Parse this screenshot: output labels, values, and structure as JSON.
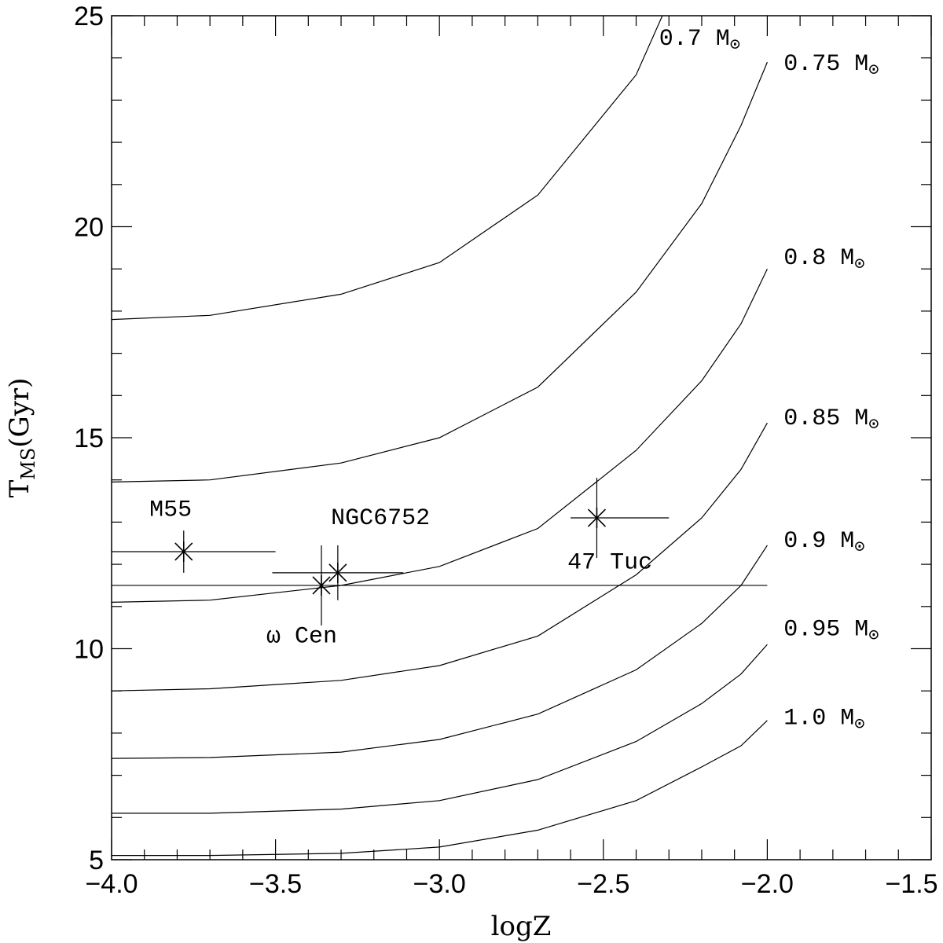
{
  "chart_data": {
    "type": "line",
    "xlabel": "logZ",
    "ylabel": {
      "main": "T",
      "sub": "MS",
      "unit": "(Gyr)"
    },
    "xlim": [
      -4.0,
      -1.5
    ],
    "ylim": [
      5,
      25
    ],
    "x_ticks": [
      {
        "value": -4.0,
        "label": "−4.0"
      },
      {
        "value": -3.5,
        "label": "−3.5"
      },
      {
        "value": -3.0,
        "label": "−3.0"
      },
      {
        "value": -2.5,
        "label": "−2.5"
      },
      {
        "value": -2.0,
        "label": "−2.0"
      },
      {
        "value": -1.5,
        "label": "−1.5"
      }
    ],
    "x_minor_step": 0.1,
    "y_ticks": [
      {
        "value": 5,
        "label": "5"
      },
      {
        "value": 10,
        "label": "10"
      },
      {
        "value": 15,
        "label": "15"
      },
      {
        "value": 20,
        "label": "20"
      },
      {
        "value": 25,
        "label": "25"
      }
    ],
    "y_minor_step": 1,
    "mass_symbol": "M",
    "sun_symbol": "⊙",
    "series": [
      {
        "name": "0.7",
        "x": [
          -4.0,
          -3.7,
          -3.3,
          -3.0,
          -2.7,
          -2.4,
          -2.32
        ],
        "y": [
          17.8,
          17.9,
          18.4,
          19.15,
          20.75,
          23.6,
          25.0
        ]
      },
      {
        "name": "0.75",
        "x": [
          -4.0,
          -3.7,
          -3.3,
          -3.0,
          -2.7,
          -2.4,
          -2.2,
          -2.08,
          -2.0
        ],
        "y": [
          13.95,
          14.0,
          14.4,
          15.0,
          16.2,
          18.45,
          20.55,
          22.4,
          23.9
        ]
      },
      {
        "name": "0.8",
        "x": [
          -4.0,
          -3.7,
          -3.3,
          -3.0,
          -2.7,
          -2.4,
          -2.2,
          -2.08,
          -2.0
        ],
        "y": [
          11.1,
          11.15,
          11.5,
          11.95,
          12.85,
          14.7,
          16.35,
          17.7,
          19.0
        ]
      },
      {
        "name": "0.85",
        "x": [
          -4.0,
          -3.7,
          -3.3,
          -3.0,
          -2.7,
          -2.4,
          -2.2,
          -2.08,
          -2.0
        ],
        "y": [
          9.0,
          9.05,
          9.25,
          9.6,
          10.3,
          11.75,
          13.1,
          14.25,
          15.35
        ]
      },
      {
        "name": "0.9",
        "x": [
          -4.0,
          -3.7,
          -3.3,
          -3.0,
          -2.7,
          -2.4,
          -2.2,
          -2.08,
          -2.0
        ],
        "y": [
          7.4,
          7.42,
          7.55,
          7.85,
          8.45,
          9.5,
          10.6,
          11.5,
          12.45
        ]
      },
      {
        "name": "0.95",
        "x": [
          -4.0,
          -3.7,
          -3.3,
          -3.0,
          -2.7,
          -2.4,
          -2.2,
          -2.08,
          -2.0
        ],
        "y": [
          6.1,
          6.1,
          6.2,
          6.4,
          6.9,
          7.8,
          8.7,
          9.4,
          10.1
        ]
      },
      {
        "name": "1.0",
        "x": [
          -4.0,
          -3.7,
          -3.3,
          -3.0,
          -2.7,
          -2.4,
          -2.2,
          -2.08,
          -2.0
        ],
        "y": [
          5.1,
          5.1,
          5.15,
          5.3,
          5.7,
          6.4,
          7.2,
          7.7,
          8.3
        ]
      }
    ],
    "curve_labels": [
      {
        "series": "0.7",
        "text": "0.7",
        "anchor_x": -2.33,
        "anchor_y": 24.5
      },
      {
        "series": "0.75",
        "text": "0.75",
        "anchor_x": -1.95,
        "anchor_y": 23.9
      },
      {
        "series": "0.8",
        "text": "0.8",
        "anchor_x": -1.95,
        "anchor_y": 19.3
      },
      {
        "series": "0.85",
        "text": "0.85",
        "anchor_x": -1.95,
        "anchor_y": 15.5
      },
      {
        "series": "0.9",
        "text": "0.9",
        "anchor_x": -1.95,
        "anchor_y": 12.6
      },
      {
        "series": "0.95",
        "text": "0.95",
        "anchor_x": -1.95,
        "anchor_y": 10.5
      },
      {
        "series": "1.0",
        "text": "1.0",
        "anchor_x": -1.95,
        "anchor_y": 8.4
      }
    ],
    "horizontal_line": {
      "y": 11.5,
      "x_from": -4.0,
      "x_to": -2.0
    },
    "clusters": [
      {
        "name": "M55",
        "x": -3.78,
        "y": 12.3,
        "x_err": [
          0.22,
          0.28
        ],
        "y_err": [
          0.5,
          0.5
        ],
        "label_x": -3.82,
        "label_y": 13.15
      },
      {
        "name": "NGC6752",
        "x": -3.31,
        "y": 11.8,
        "x_err": [
          0.2,
          0.2
        ],
        "y_err": [
          0.65,
          0.65
        ],
        "label_x": -3.18,
        "label_y": 12.95
      },
      {
        "name": "ω Cen",
        "x": -3.36,
        "y": 11.5,
        "x_err": [
          0.0,
          0.0
        ],
        "y_err": [
          0.95,
          0.95
        ],
        "label_x": -3.42,
        "label_y": 10.15
      },
      {
        "name": "47 Tuc",
        "x": -2.52,
        "y": 13.1,
        "x_err": [
          0.08,
          0.22
        ],
        "y_err": [
          0.95,
          0.95
        ],
        "label_x": -2.48,
        "label_y": 11.9
      }
    ]
  }
}
